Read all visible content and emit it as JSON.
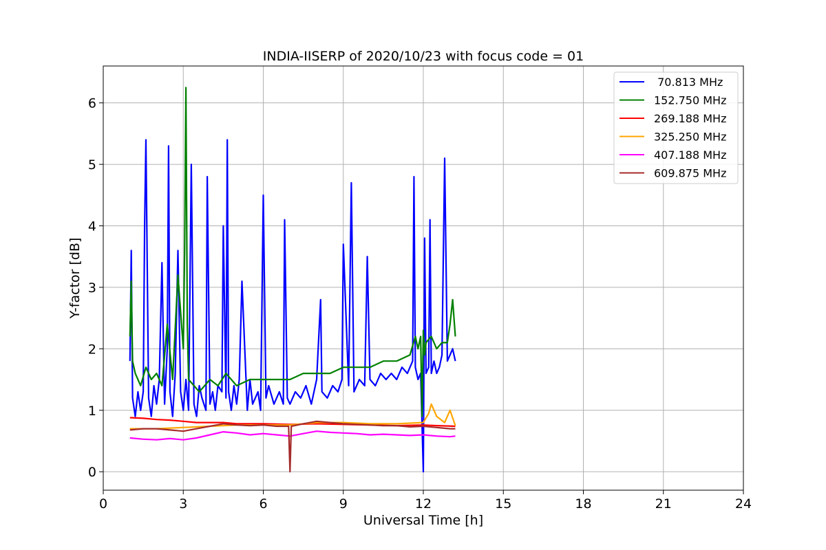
{
  "chart_data": {
    "type": "line",
    "title": "INDIA-IISERP of 2020/10/23 with focus code = 01",
    "xlabel": "Universal Time [h]",
    "ylabel": "Y-factor [dB]",
    "xlim": [
      0,
      24
    ],
    "ylim": [
      -0.3,
      6.6
    ],
    "xticks": [
      0,
      3,
      6,
      9,
      12,
      15,
      18,
      21,
      24
    ],
    "yticks": [
      0,
      1,
      2,
      3,
      4,
      5,
      6
    ],
    "grid": true,
    "legend_position": "top-right",
    "series": [
      {
        "name": " 70.813 MHz",
        "color": "#0000ff",
        "x": [
          1.0,
          1.05,
          1.1,
          1.2,
          1.3,
          1.4,
          1.5,
          1.55,
          1.6,
          1.7,
          1.8,
          1.9,
          2.0,
          2.1,
          2.2,
          2.3,
          2.4,
          2.45,
          2.5,
          2.6,
          2.7,
          2.8,
          2.9,
          3.0,
          3.1,
          3.2,
          3.3,
          3.4,
          3.5,
          3.6,
          3.7,
          3.85,
          3.9,
          4.0,
          4.1,
          4.2,
          4.3,
          4.45,
          4.5,
          4.6,
          4.65,
          4.7,
          4.8,
          4.9,
          5.0,
          5.1,
          5.2,
          5.4,
          5.5,
          5.6,
          5.8,
          5.9,
          6.0,
          6.1,
          6.2,
          6.4,
          6.6,
          6.75,
          6.8,
          6.9,
          7.0,
          7.2,
          7.4,
          7.6,
          7.8,
          8.0,
          8.15,
          8.2,
          8.4,
          8.6,
          8.8,
          8.95,
          9.0,
          9.2,
          9.3,
          9.4,
          9.6,
          9.8,
          9.9,
          10.0,
          10.2,
          10.4,
          10.6,
          10.8,
          11.0,
          11.2,
          11.4,
          11.6,
          11.65,
          11.7,
          11.8,
          11.9,
          12.0,
          12.05,
          12.1,
          12.2,
          12.25,
          12.3,
          12.4,
          12.5,
          12.6,
          12.7,
          12.8,
          12.9,
          13.0,
          13.1,
          13.2
        ],
        "y": [
          1.8,
          3.6,
          1.2,
          0.9,
          1.3,
          1.0,
          1.3,
          4.0,
          5.4,
          1.2,
          0.9,
          1.4,
          1.1,
          1.5,
          3.4,
          1.1,
          2.0,
          5.3,
          1.3,
          0.9,
          1.6,
          3.6,
          1.3,
          1.0,
          1.5,
          1.0,
          5.0,
          1.1,
          0.9,
          1.4,
          1.2,
          1.0,
          4.8,
          1.1,
          1.3,
          1.0,
          1.4,
          1.3,
          4.0,
          1.2,
          5.4,
          1.3,
          1.0,
          1.4,
          1.1,
          1.5,
          3.1,
          1.0,
          1.5,
          1.1,
          1.3,
          1.0,
          4.5,
          1.2,
          1.4,
          1.1,
          1.3,
          1.1,
          4.1,
          1.2,
          1.1,
          1.3,
          1.2,
          1.4,
          1.1,
          1.5,
          2.8,
          1.3,
          1.2,
          1.4,
          1.3,
          1.5,
          3.7,
          1.4,
          4.7,
          1.3,
          1.5,
          1.4,
          3.5,
          1.5,
          1.4,
          1.6,
          1.5,
          1.6,
          1.5,
          1.7,
          1.6,
          1.8,
          4.8,
          1.7,
          1.5,
          1.6,
          0.0,
          3.8,
          1.6,
          1.7,
          4.1,
          1.6,
          1.8,
          1.6,
          1.7,
          1.9,
          5.1,
          1.8,
          1.9,
          2.0,
          1.8
        ]
      },
      {
        "name": "152.750 MHz",
        "color": "#008000",
        "x": [
          1.0,
          1.05,
          1.1,
          1.2,
          1.4,
          1.6,
          1.8,
          2.0,
          2.2,
          2.4,
          2.6,
          2.8,
          3.0,
          3.05,
          3.1,
          3.15,
          3.2,
          3.4,
          3.6,
          3.8,
          4.0,
          4.3,
          4.6,
          5.0,
          5.5,
          6.0,
          6.5,
          7.0,
          7.5,
          8.0,
          8.5,
          9.0,
          9.5,
          10.0,
          10.5,
          11.0,
          11.5,
          11.7,
          11.8,
          11.9,
          11.95,
          12.0,
          12.05,
          12.1,
          12.3,
          12.5,
          12.7,
          12.9,
          13.0,
          13.1,
          13.2
        ],
        "y": [
          2.2,
          3.1,
          1.8,
          1.6,
          1.4,
          1.7,
          1.5,
          1.6,
          1.4,
          2.4,
          1.5,
          3.2,
          2.0,
          3.6,
          6.25,
          2.4,
          1.5,
          1.4,
          1.3,
          1.4,
          1.5,
          1.4,
          1.6,
          1.4,
          1.5,
          1.5,
          1.5,
          1.5,
          1.6,
          1.6,
          1.6,
          1.7,
          1.7,
          1.7,
          1.8,
          1.8,
          1.9,
          2.2,
          2.0,
          2.2,
          0.9,
          2.3,
          1.9,
          2.1,
          2.2,
          2.0,
          2.1,
          2.1,
          2.4,
          2.8,
          2.2
        ]
      },
      {
        "name": "269.188 MHz",
        "color": "#ff0000",
        "x": [
          1.0,
          1.5,
          2.0,
          2.5,
          3.0,
          3.5,
          4.0,
          4.5,
          5.0,
          6.0,
          7.0,
          8.0,
          9.0,
          10.0,
          11.0,
          12.0,
          12.5,
          13.2
        ],
        "y": [
          0.88,
          0.87,
          0.85,
          0.84,
          0.82,
          0.8,
          0.8,
          0.8,
          0.78,
          0.78,
          0.77,
          0.78,
          0.77,
          0.76,
          0.75,
          0.76,
          0.75,
          0.74
        ]
      },
      {
        "name": "325.250 MHz",
        "color": "#ffa500",
        "x": [
          1.0,
          2.0,
          3.0,
          4.0,
          5.0,
          6.0,
          7.0,
          8.0,
          9.0,
          10.0,
          11.0,
          12.0,
          12.2,
          12.3,
          12.5,
          12.8,
          13.0,
          13.2
        ],
        "y": [
          0.7,
          0.7,
          0.72,
          0.74,
          0.76,
          0.76,
          0.76,
          0.8,
          0.8,
          0.78,
          0.78,
          0.8,
          0.95,
          1.1,
          0.9,
          0.8,
          1.0,
          0.75
        ]
      },
      {
        "name": "407.188 MHz",
        "color": "#ff00ff",
        "x": [
          1.0,
          1.5,
          2.0,
          2.5,
          3.0,
          3.5,
          4.0,
          4.5,
          5.0,
          5.5,
          6.0,
          6.5,
          7.0,
          7.5,
          8.0,
          8.5,
          9.0,
          9.5,
          10.0,
          10.5,
          11.0,
          11.5,
          12.0,
          12.5,
          13.0,
          13.2
        ],
        "y": [
          0.55,
          0.53,
          0.52,
          0.54,
          0.52,
          0.55,
          0.6,
          0.65,
          0.63,
          0.6,
          0.62,
          0.6,
          0.58,
          0.62,
          0.66,
          0.64,
          0.63,
          0.62,
          0.6,
          0.61,
          0.6,
          0.59,
          0.6,
          0.58,
          0.57,
          0.58
        ]
      },
      {
        "name": "609.875 MHz",
        "color": "#a52a2a",
        "x": [
          1.0,
          1.5,
          2.0,
          2.5,
          3.0,
          3.5,
          4.0,
          4.5,
          5.0,
          5.5,
          6.0,
          6.5,
          6.95,
          7.0,
          7.05,
          7.5,
          8.0,
          8.5,
          9.0,
          9.5,
          10.0,
          10.5,
          11.0,
          11.5,
          12.0,
          12.5,
          13.0,
          13.2
        ],
        "y": [
          0.68,
          0.7,
          0.7,
          0.68,
          0.66,
          0.7,
          0.74,
          0.78,
          0.76,
          0.75,
          0.76,
          0.74,
          0.74,
          0.0,
          0.74,
          0.78,
          0.82,
          0.8,
          0.78,
          0.77,
          0.76,
          0.75,
          0.75,
          0.73,
          0.74,
          0.72,
          0.7,
          0.7
        ]
      }
    ]
  }
}
